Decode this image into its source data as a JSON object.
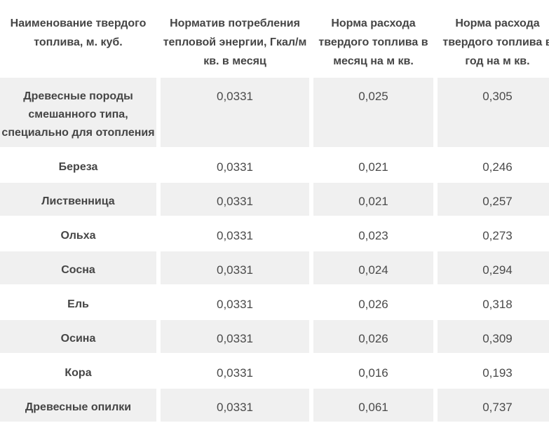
{
  "colors": {
    "page_background": "#ffffff",
    "stripe_row_background": "#f0f0f0",
    "plain_row_background": "#ffffff",
    "header_text": "#454545",
    "fuel_name_text": "#454545",
    "value_text": "#4a4a4a"
  },
  "table": {
    "columns": [
      {
        "label": [
          "Наименование твердого",
          "топлива, м. куб."
        ]
      },
      {
        "label": [
          "Норматив потребления",
          "тепловой энергии, Гкал/м",
          "кв. в месяц"
        ]
      },
      {
        "label": [
          "Норма расхода",
          "твердого топлива в",
          "месяц на м кв."
        ]
      },
      {
        "label": [
          "Норма расхода",
          "твердого топлива в",
          "год на м кв."
        ]
      }
    ],
    "rows": [
      {
        "name": [
          "Древесные породы",
          "смешанного типа,",
          "специально для отопления"
        ],
        "values": [
          "0,0331",
          "0,025",
          "0,305"
        ]
      },
      {
        "name": "Береза",
        "values": [
          "0,0331",
          "0,021",
          "0,246"
        ]
      },
      {
        "name": "Лиственница",
        "values": [
          "0,0331",
          "0,021",
          "0,257"
        ]
      },
      {
        "name": "Ольха",
        "values": [
          "0,0331",
          "0,023",
          "0,273"
        ]
      },
      {
        "name": "Сосна",
        "values": [
          "0,0331",
          "0,024",
          "0,294"
        ]
      },
      {
        "name": "Ель",
        "values": [
          "0,0331",
          "0,026",
          "0,318"
        ]
      },
      {
        "name": "Осина",
        "values": [
          "0,0331",
          "0,026",
          "0,309"
        ]
      },
      {
        "name": "Кора",
        "values": [
          "0,0331",
          "0,016",
          "0,193"
        ]
      },
      {
        "name": "Древесные опилки",
        "values": [
          "0,0331",
          "0,061",
          "0,737"
        ]
      }
    ]
  }
}
